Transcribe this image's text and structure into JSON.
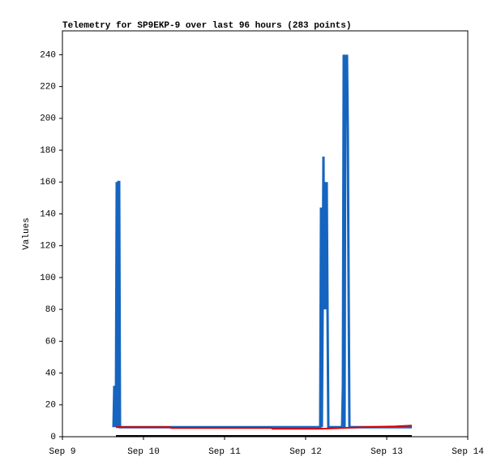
{
  "chart_data": {
    "type": "line",
    "title": "Telemetry for SP9EKP-9 over last 96 hours (283 points)",
    "y_label": "Values",
    "xlim": [
      9,
      14
    ],
    "xticks": [
      {
        "value": 9,
        "label": "Sep 9"
      },
      {
        "value": 10,
        "label": "Sep 10"
      },
      {
        "value": 11,
        "label": "Sep 11"
      },
      {
        "value": 12,
        "label": "Sep 12"
      },
      {
        "value": 13,
        "label": "Sep 13"
      },
      {
        "value": 14,
        "label": "Sep 14"
      }
    ],
    "ylim": [
      0,
      255
    ],
    "yticks": [
      0,
      20,
      40,
      60,
      80,
      100,
      120,
      140,
      160,
      180,
      200,
      220,
      240
    ],
    "grid": false,
    "series": [
      {
        "color": "#1565c0",
        "x": [
          9.63,
          9.64,
          9.65,
          9.66,
          9.67,
          9.68,
          9.69,
          9.7,
          9.71,
          12.18,
          12.19,
          12.2,
          12.21,
          12.22,
          12.23,
          12.24,
          12.25,
          12.26,
          12.27,
          12.28,
          12.45,
          12.46,
          12.47,
          12.48,
          12.49,
          12.5,
          12.51,
          12.52,
          12.53,
          12.54,
          12.55,
          13.31
        ],
        "values": [
          6,
          32,
          6,
          16,
          160,
          6,
          160,
          160,
          6,
          6,
          144,
          6,
          80,
          176,
          80,
          160,
          80,
          160,
          80,
          6,
          6,
          32,
          240,
          6,
          240,
          224,
          240,
          192,
          96,
          6,
          6,
          6
        ]
      },
      {
        "color": "#e00000",
        "x": [
          9.66,
          10.33,
          10.34,
          11.58,
          11.59,
          12.18,
          12.73,
          13.11,
          13.31
        ],
        "values": [
          6,
          6,
          5.5,
          5.5,
          5,
          5,
          6,
          6.5,
          7
        ]
      },
      {
        "color": "#000000",
        "x": [
          9.66,
          13.31
        ],
        "values": [
          0.5,
          0.5
        ]
      }
    ]
  }
}
